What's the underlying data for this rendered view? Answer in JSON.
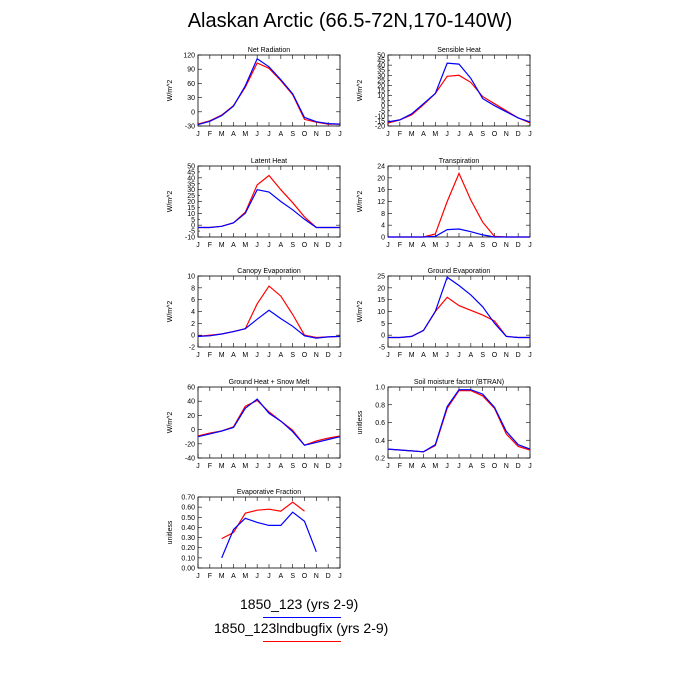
{
  "title": "Alaskan Arctic (66.5-72N,170-140W)",
  "legend": [
    {
      "label": "1850_123 (yrs 2-9)",
      "color": "#0000ff"
    },
    {
      "label": "1850_123lndbugfix (yrs 2-9)",
      "color": "#ff0000"
    }
  ],
  "months": [
    "J",
    "F",
    "M",
    "A",
    "M",
    "J",
    "J",
    "A",
    "S",
    "O",
    "N",
    "D",
    "J"
  ],
  "chart_data": [
    {
      "type": "line",
      "title": "Net Radiation",
      "ylabel": "W/m^2",
      "ylim": [
        -30,
        120
      ],
      "yticks": [
        -30,
        0,
        30,
        60,
        90,
        120
      ],
      "ytick_labels": [
        "-30",
        "0",
        "30",
        "60",
        "90",
        "120"
      ],
      "series": [
        {
          "name": "1850_123 (yrs 2-9)",
          "color": "#0000ff",
          "values": [
            -27,
            -20,
            -8,
            12,
            55,
            112,
            95,
            68,
            38,
            -12,
            -21,
            -25,
            -26
          ]
        },
        {
          "name": "1850_123lndbugfix (yrs 2-9)",
          "color": "#ff0000",
          "values": [
            -26,
            -19,
            -7,
            13,
            52,
            103,
            92,
            66,
            36,
            -16,
            -22,
            -26,
            -26
          ]
        }
      ]
    },
    {
      "type": "line",
      "title": "Sensible Heat",
      "ylabel": "W/m^2",
      "ylim": [
        -20,
        50
      ],
      "yticks": [
        -20,
        -10,
        0,
        10,
        20,
        30,
        40,
        50
      ],
      "ytick_labels": [
        "-20",
        "-10",
        "0",
        "10",
        "20",
        "30",
        "40",
        "50"
      ],
      "minor_yticks": [
        -15,
        -5,
        5,
        15,
        25,
        35,
        45
      ],
      "minor_ytick_labels": [
        "-15",
        "-5",
        "5",
        "15",
        "25",
        "35",
        "45"
      ],
      "series": [
        {
          "name": "1850_123 (yrs 2-9)",
          "color": "#0000ff",
          "values": [
            -16,
            -14,
            -8,
            2,
            12,
            42,
            41,
            27,
            7,
            0,
            -6,
            -12,
            -16
          ]
        },
        {
          "name": "1850_123lndbugfix (yrs 2-9)",
          "color": "#ff0000",
          "values": [
            -17,
            -14,
            -9,
            1,
            12,
            29,
            30,
            23,
            9,
            2,
            -5,
            -12,
            -17
          ]
        }
      ]
    },
    {
      "type": "line",
      "title": "Latent Heat",
      "ylabel": "W/m^2",
      "ylim": [
        -10,
        50
      ],
      "yticks": [
        -10,
        0,
        10,
        20,
        30,
        40,
        50
      ],
      "ytick_labels": [
        "-10",
        "0",
        "10",
        "20",
        "30",
        "40",
        "50"
      ],
      "minor_yticks": [
        -5,
        5,
        15,
        25,
        35,
        45
      ],
      "minor_ytick_labels": [
        "-5",
        "5",
        "15",
        "25",
        "35",
        "45"
      ],
      "series": [
        {
          "name": "1850_123 (yrs 2-9)",
          "color": "#0000ff",
          "values": [
            -2,
            -2,
            -1,
            2,
            10,
            30,
            28,
            20,
            13,
            5,
            -2,
            -2,
            -2
          ]
        },
        {
          "name": "1850_123lndbugfix (yrs 2-9)",
          "color": "#ff0000",
          "values": [
            -2,
            -2,
            -1,
            2,
            11,
            34,
            42,
            30,
            19,
            7,
            -2,
            -2,
            -2
          ]
        }
      ]
    },
    {
      "type": "line",
      "title": "Transpiration",
      "ylabel": "W/m^2",
      "ylim": [
        0,
        24
      ],
      "yticks": [
        0,
        4,
        8,
        12,
        16,
        20,
        24
      ],
      "ytick_labels": [
        "0",
        "4",
        "8",
        "12",
        "16",
        "20",
        "24"
      ],
      "series": [
        {
          "name": "1850_123 (yrs 2-9)",
          "color": "#0000ff",
          "values": [
            0,
            0,
            0,
            0,
            0.2,
            2.5,
            2.7,
            1.8,
            0.7,
            0,
            0,
            0,
            0
          ]
        },
        {
          "name": "1850_123lndbugfix (yrs 2-9)",
          "color": "#ff0000",
          "values": [
            0,
            0,
            0,
            0,
            1,
            12,
            21.5,
            12.5,
            5,
            0.2,
            0,
            0,
            0
          ]
        }
      ]
    },
    {
      "type": "line",
      "title": "Canopy Evaporation",
      "ylabel": "W/m^2",
      "ylim": [
        -2,
        10
      ],
      "yticks": [
        -2,
        0,
        2,
        4,
        6,
        8,
        10
      ],
      "ytick_labels": [
        "-2",
        "0",
        "2",
        "4",
        "6",
        "8",
        "10"
      ],
      "series": [
        {
          "name": "1850_123 (yrs 2-9)",
          "color": "#0000ff",
          "values": [
            -0.2,
            -0.1,
            0.2,
            0.6,
            1.1,
            2.7,
            4.2,
            2.8,
            1.5,
            -0.1,
            -0.5,
            -0.3,
            -0.2
          ]
        },
        {
          "name": "1850_123lndbugfix (yrs 2-9)",
          "color": "#ff0000",
          "values": [
            -0.2,
            0,
            0.2,
            0.6,
            1.1,
            5.3,
            8.3,
            6.6,
            3.5,
            0,
            -0.4,
            -0.3,
            -0.2
          ]
        }
      ]
    },
    {
      "type": "line",
      "title": "Ground Evaporation",
      "ylabel": "W/m^2",
      "ylim": [
        -5,
        25
      ],
      "yticks": [
        -5,
        0,
        5,
        10,
        15,
        20,
        25
      ],
      "ytick_labels": [
        "-5",
        "0",
        "5",
        "10",
        "15",
        "20",
        "25"
      ],
      "series": [
        {
          "name": "1850_123 (yrs 2-9)",
          "color": "#0000ff",
          "values": [
            -1,
            -1,
            -0.5,
            2,
            10,
            24.5,
            21,
            17,
            12,
            5,
            -0.5,
            -1,
            -1
          ]
        },
        {
          "name": "1850_123lndbugfix (yrs 2-9)",
          "color": "#ff0000",
          "values": [
            -1,
            -1,
            -0.5,
            2,
            10,
            16,
            12.5,
            10.5,
            8.5,
            6,
            -0.5,
            -1,
            -1
          ]
        }
      ]
    },
    {
      "type": "line",
      "title": "Ground Heat + Snow Melt",
      "ylabel": "W/m^2",
      "ylim": [
        -40,
        60
      ],
      "yticks": [
        -40,
        -20,
        0,
        20,
        40,
        60
      ],
      "ytick_labels": [
        "-40",
        "-20",
        "0",
        "20",
        "40",
        "60"
      ],
      "series": [
        {
          "name": "1850_123 (yrs 2-9)",
          "color": "#0000ff",
          "values": [
            -10,
            -6,
            -2,
            3,
            30,
            43,
            23,
            12,
            -3,
            -22,
            -18,
            -14,
            -10
          ]
        },
        {
          "name": "1850_123lndbugfix (yrs 2-9)",
          "color": "#ff0000",
          "values": [
            -9,
            -5,
            -2,
            4,
            33,
            41,
            25,
            12,
            -1,
            -22,
            -16,
            -12,
            -9
          ]
        }
      ]
    },
    {
      "type": "line",
      "title": "Soil moisture factor (BTRAN)",
      "ylabel": "unitless",
      "ylim": [
        0.2,
        1.0
      ],
      "yticks": [
        0.2,
        0.4,
        0.6,
        0.8,
        1.0
      ],
      "ytick_labels": [
        "0.2",
        "0.4",
        "0.6",
        "0.8",
        "1.0"
      ],
      "series": [
        {
          "name": "1850_123 (yrs 2-9)",
          "color": "#0000ff",
          "values": [
            0.3,
            0.29,
            0.28,
            0.27,
            0.35,
            0.78,
            0.97,
            0.97,
            0.92,
            0.77,
            0.5,
            0.35,
            0.3
          ]
        },
        {
          "name": "1850_123lndbugfix (yrs 2-9)",
          "color": "#ff0000",
          "values": [
            0.3,
            0.29,
            0.28,
            0.27,
            0.34,
            0.76,
            0.96,
            0.96,
            0.9,
            0.76,
            0.47,
            0.33,
            0.29
          ]
        }
      ]
    },
    {
      "type": "line",
      "title": "Evaporative Fraction",
      "ylabel": "unitless",
      "ylim": [
        0.0,
        0.7
      ],
      "yticks": [
        0.0,
        0.1,
        0.2,
        0.3,
        0.4,
        0.5,
        0.6,
        0.7
      ],
      "ytick_labels": [
        "0.00",
        "0.10",
        "0.20",
        "0.30",
        "0.40",
        "0.50",
        "0.60",
        "0.70"
      ],
      "series": [
        {
          "name": "1850_123 (yrs 2-9)",
          "color": "#0000ff",
          "values": [
            null,
            null,
            0.1,
            0.38,
            0.49,
            0.45,
            0.42,
            0.42,
            0.55,
            0.46,
            0.16,
            null,
            null
          ]
        },
        {
          "name": "1850_123lndbugfix (yrs 2-9)",
          "color": "#ff0000",
          "values": [
            null,
            null,
            0.29,
            0.35,
            0.54,
            0.57,
            0.58,
            0.56,
            0.65,
            0.56,
            null,
            null,
            null
          ]
        }
      ]
    }
  ]
}
